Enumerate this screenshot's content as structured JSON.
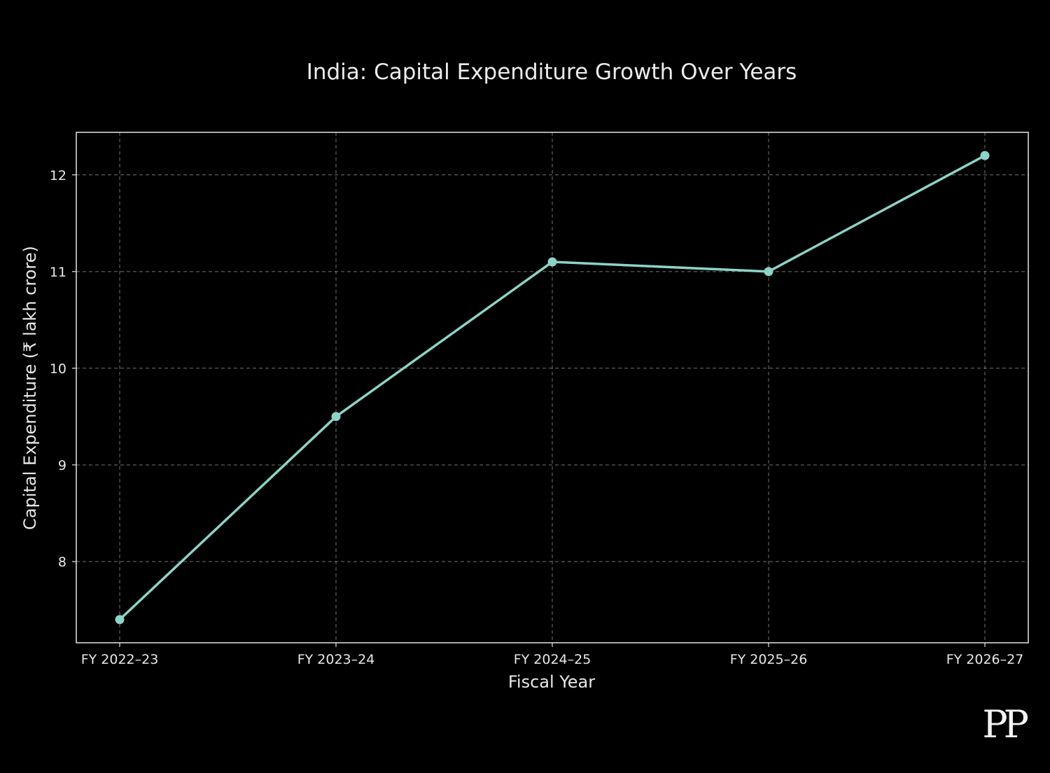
{
  "chart_data": {
    "type": "line",
    "title": "India: Capital Expenditure Growth Over Years",
    "xlabel": "Fiscal Year",
    "ylabel": "Capital Expenditure (₹ lakh crore)",
    "categories": [
      "FY 2022–23",
      "FY 2023–24",
      "FY 2024–25",
      "FY 2025–26",
      "FY 2026–27"
    ],
    "series": [
      {
        "name": "Capital Expenditure",
        "values": [
          7.4,
          9.5,
          11.1,
          11.0,
          12.2
        ]
      }
    ],
    "yticks": [
      8,
      9,
      10,
      11,
      12
    ],
    "ylim": [
      7.16,
      12.44
    ],
    "grid": true,
    "line_color": "#8dd3c7",
    "background_color": "#000000",
    "text_color": "#e8e8e8"
  },
  "watermark": {
    "text": "PP"
  }
}
